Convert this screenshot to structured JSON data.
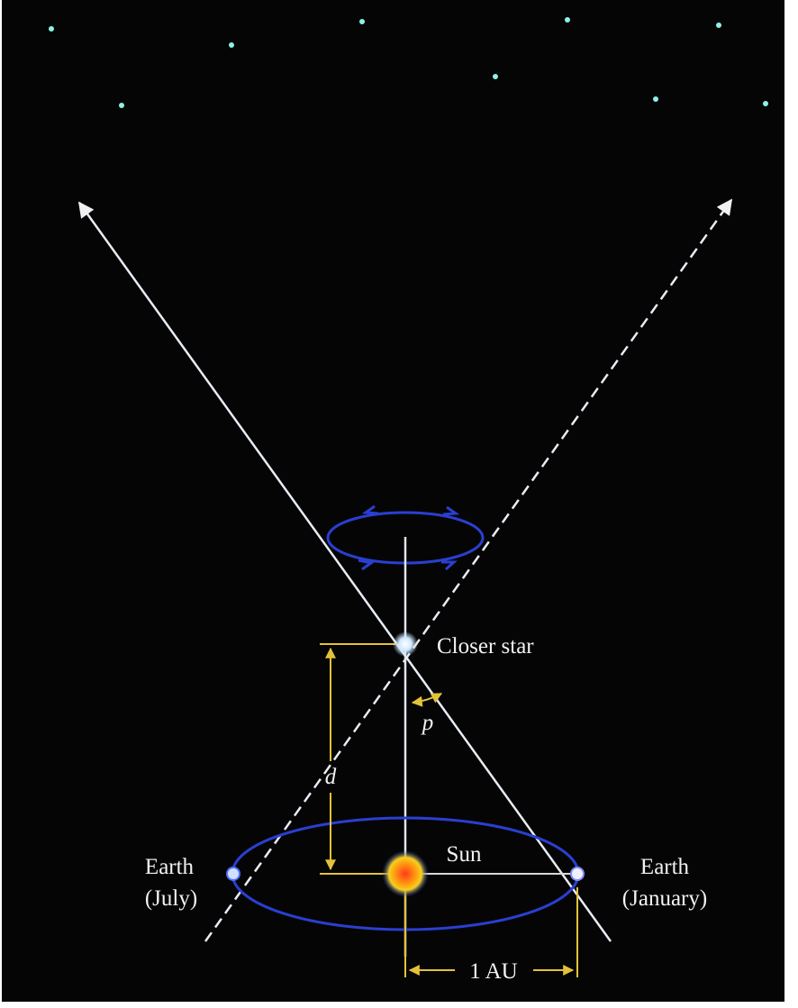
{
  "labels": {
    "closer_star": "Closer star",
    "p": "p",
    "d": "d",
    "sun": "Sun",
    "earth_july": [
      "Earth",
      "(July)"
    ],
    "earth_january": [
      "Earth",
      "(January)"
    ],
    "au": "1 AU"
  }
}
